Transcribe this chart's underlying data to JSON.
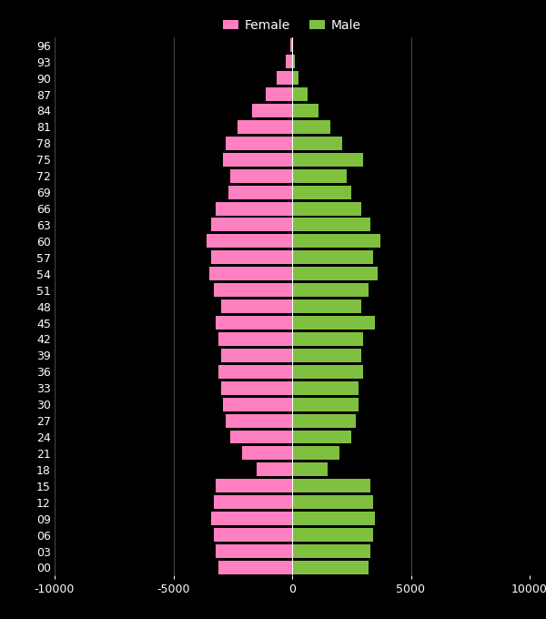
{
  "background_color": "#000000",
  "text_color": "#ffffff",
  "female_color": "#ff80c0",
  "male_color": "#80c040",
  "xlim": [
    -10000,
    10000
  ],
  "xticks": [
    -10000,
    -5000,
    0,
    5000,
    10000
  ],
  "xtick_labels": [
    "-10000",
    "-5000",
    "0",
    "5000",
    "10000"
  ],
  "ages": [
    0,
    3,
    6,
    9,
    12,
    15,
    18,
    21,
    24,
    27,
    30,
    33,
    36,
    39,
    42,
    45,
    48,
    51,
    54,
    57,
    60,
    63,
    66,
    69,
    72,
    75,
    78,
    81,
    84,
    87,
    90,
    93,
    96
  ],
  "female": [
    3100,
    3200,
    3300,
    3400,
    3300,
    3200,
    1500,
    2100,
    2600,
    2800,
    2900,
    3000,
    3100,
    3000,
    3100,
    3200,
    3000,
    3300,
    3500,
    3400,
    3600,
    3400,
    3200,
    2700,
    2600,
    2900,
    2800,
    2300,
    1700,
    1100,
    650,
    250,
    80
  ],
  "male": [
    3200,
    3300,
    3400,
    3500,
    3400,
    3300,
    1500,
    2000,
    2500,
    2700,
    2800,
    2800,
    3000,
    2900,
    3000,
    3500,
    2900,
    3200,
    3600,
    3400,
    3700,
    3300,
    2900,
    2500,
    2300,
    3000,
    2100,
    1600,
    1100,
    650,
    280,
    120,
    40
  ],
  "bar_height": 2.5,
  "legend_fontsize": 10,
  "tick_fontsize": 9
}
